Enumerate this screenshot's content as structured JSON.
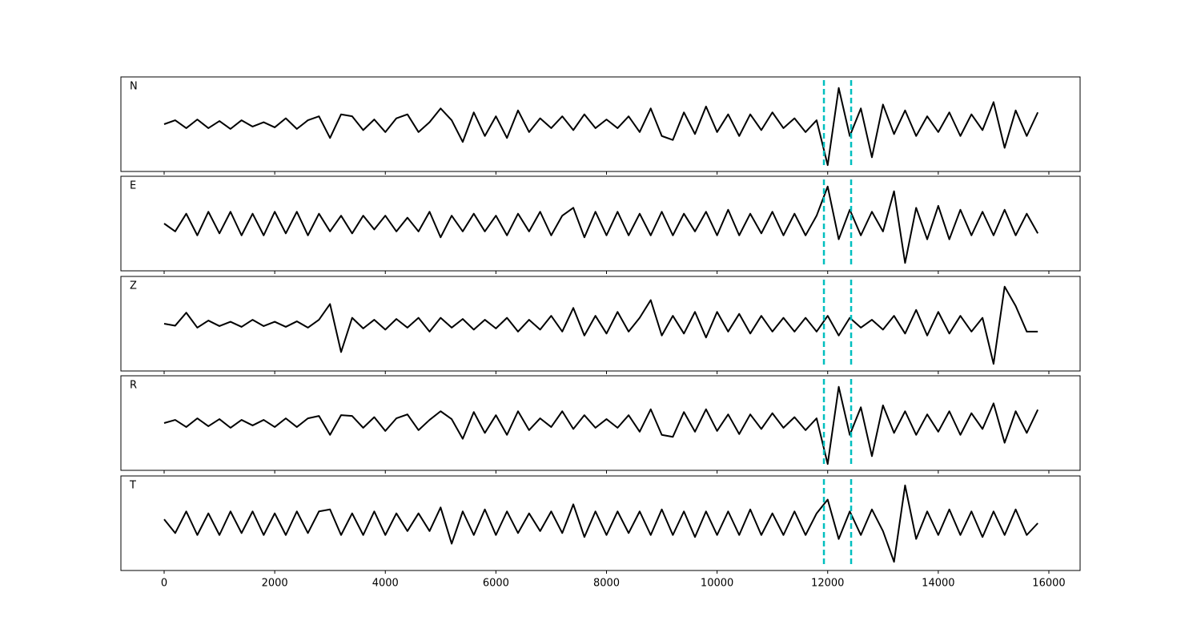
{
  "chart_data": {
    "type": "line",
    "xlim": [
      -782,
      16565
    ],
    "xticks": [
      0,
      2000,
      4000,
      6000,
      8000,
      10000,
      12000,
      14000,
      16000
    ],
    "ylim": [
      -1.2,
      1.2
    ],
    "vlines": [
      11932,
      12424
    ],
    "vline_color": "#00bfbf",
    "x": [
      0,
      200,
      400,
      600,
      800,
      1000,
      1200,
      1400,
      1600,
      1800,
      2000,
      2200,
      2400,
      2600,
      2800,
      3000,
      3200,
      3400,
      3600,
      3800,
      4000,
      4200,
      4400,
      4600,
      4800,
      5000,
      5200,
      5400,
      5600,
      5800,
      6000,
      6200,
      6400,
      6600,
      6800,
      7000,
      7200,
      7400,
      7600,
      7800,
      8000,
      8200,
      8400,
      8600,
      8800,
      9000,
      9200,
      9400,
      9600,
      9800,
      10000,
      10200,
      10400,
      10600,
      10800,
      11000,
      11200,
      11400,
      11600,
      11800,
      12000,
      12200,
      12400,
      12600,
      12800,
      13000,
      13200,
      13400,
      13600,
      13800,
      14000,
      14200,
      14400,
      14600,
      14800,
      15000,
      15200,
      15400,
      15600,
      15800
    ],
    "series": [
      {
        "name": "N",
        "color": "#000000",
        "values": [
          0,
          0.1,
          -0.1,
          0.12,
          -0.1,
          0.08,
          -0.12,
          0.1,
          -0.06,
          0.05,
          -0.08,
          0.15,
          -0.12,
          0.1,
          0.2,
          -0.35,
          0.25,
          0.2,
          -0.15,
          0.12,
          -0.2,
          0.15,
          0.25,
          -0.2,
          0.05,
          0.4,
          0.1,
          -0.45,
          0.3,
          -0.3,
          0.2,
          -0.35,
          0.35,
          -0.2,
          0.15,
          -0.1,
          0.2,
          -0.15,
          0.25,
          -0.1,
          0.12,
          -0.1,
          0.2,
          -0.2,
          0.4,
          -0.3,
          -0.4,
          0.3,
          -0.25,
          0.45,
          -0.2,
          0.25,
          -0.3,
          0.25,
          -0.15,
          0.3,
          -0.1,
          0.15,
          -0.2,
          0.1,
          -1.04,
          0.92,
          -0.3,
          0.4,
          -0.84,
          0.5,
          -0.25,
          0.35,
          -0.3,
          0.2,
          -0.2,
          0.3,
          -0.3,
          0.25,
          -0.15,
          0.56,
          -0.6,
          0.35,
          -0.3,
          0.3
        ]
      },
      {
        "name": "E",
        "color": "#000000",
        "values": [
          0,
          -0.2,
          0.25,
          -0.3,
          0.3,
          -0.25,
          0.3,
          -0.3,
          0.25,
          -0.3,
          0.3,
          -0.25,
          0.3,
          -0.3,
          0.25,
          -0.2,
          0.2,
          -0.25,
          0.2,
          -0.15,
          0.2,
          -0.2,
          0.15,
          -0.2,
          0.3,
          -0.35,
          0.2,
          -0.2,
          0.25,
          -0.2,
          0.2,
          -0.3,
          0.25,
          -0.2,
          0.3,
          -0.3,
          0.2,
          0.4,
          -0.35,
          0.3,
          -0.3,
          0.3,
          -0.3,
          0.25,
          -0.3,
          0.3,
          -0.3,
          0.25,
          -0.2,
          0.3,
          -0.3,
          0.35,
          -0.3,
          0.25,
          -0.25,
          0.3,
          -0.3,
          0.25,
          -0.3,
          0.2,
          0.94,
          -0.4,
          0.35,
          -0.3,
          0.3,
          -0.2,
          0.82,
          -1.0,
          0.4,
          -0.4,
          0.45,
          -0.4,
          0.35,
          -0.3,
          0.3,
          -0.3,
          0.35,
          -0.3,
          0.25,
          -0.25
        ]
      },
      {
        "name": "Z",
        "color": "#000000",
        "values": [
          0,
          -0.05,
          0.28,
          -0.1,
          0.08,
          -0.06,
          0.05,
          -0.08,
          0.1,
          -0.06,
          0.05,
          -0.08,
          0.06,
          -0.1,
          0.1,
          0.5,
          -0.72,
          0.15,
          -0.12,
          0.1,
          -0.15,
          0.12,
          -0.1,
          0.15,
          -0.2,
          0.15,
          -0.1,
          0.12,
          -0.15,
          0.1,
          -0.12,
          0.15,
          -0.2,
          0.1,
          -0.15,
          0.2,
          -0.2,
          0.4,
          -0.3,
          0.2,
          -0.25,
          0.3,
          -0.2,
          0.15,
          0.6,
          -0.3,
          0.2,
          -0.25,
          0.3,
          -0.35,
          0.3,
          -0.2,
          0.25,
          -0.25,
          0.2,
          -0.2,
          0.15,
          -0.2,
          0.15,
          -0.2,
          0.2,
          -0.3,
          0.15,
          -0.1,
          0.1,
          -0.15,
          0.2,
          -0.25,
          0.35,
          -0.3,
          0.3,
          -0.25,
          0.2,
          -0.2,
          0.15,
          -1.02,
          0.94,
          0.45,
          -0.2,
          -0.2
        ]
      },
      {
        "name": "R",
        "color": "#000000",
        "values": [
          0,
          0.08,
          -0.1,
          0.12,
          -0.08,
          0.1,
          -0.12,
          0.08,
          -0.06,
          0.08,
          -0.1,
          0.12,
          -0.1,
          0.12,
          0.18,
          -0.3,
          0.2,
          0.18,
          -0.12,
          0.15,
          -0.2,
          0.12,
          0.22,
          -0.18,
          0.08,
          0.3,
          0.1,
          -0.4,
          0.28,
          -0.25,
          0.2,
          -0.3,
          0.3,
          -0.18,
          0.12,
          -0.1,
          0.3,
          -0.15,
          0.2,
          -0.12,
          0.1,
          -0.12,
          0.2,
          -0.22,
          0.35,
          -0.3,
          -0.35,
          0.28,
          -0.22,
          0.35,
          -0.2,
          0.22,
          -0.28,
          0.22,
          -0.15,
          0.25,
          -0.12,
          0.15,
          -0.18,
          0.12,
          -1.04,
          0.92,
          -0.3,
          0.4,
          -0.84,
          0.45,
          -0.25,
          0.3,
          -0.3,
          0.22,
          -0.22,
          0.3,
          -0.3,
          0.25,
          -0.15,
          0.5,
          -0.5,
          0.3,
          -0.25,
          0.34
        ]
      },
      {
        "name": "T",
        "color": "#000000",
        "values": [
          0.1,
          -0.25,
          0.3,
          -0.3,
          0.25,
          -0.3,
          0.3,
          -0.25,
          0.3,
          -0.3,
          0.25,
          -0.3,
          0.3,
          -0.25,
          0.3,
          0.35,
          -0.3,
          0.25,
          -0.3,
          0.3,
          -0.3,
          0.25,
          -0.2,
          0.25,
          -0.2,
          0.4,
          -0.52,
          0.3,
          -0.3,
          0.35,
          -0.3,
          0.3,
          -0.25,
          0.25,
          -0.2,
          0.3,
          -0.25,
          0.48,
          -0.35,
          0.3,
          -0.3,
          0.3,
          -0.25,
          0.3,
          -0.3,
          0.35,
          -0.3,
          0.3,
          -0.35,
          0.3,
          -0.3,
          0.3,
          -0.3,
          0.35,
          -0.3,
          0.25,
          -0.3,
          0.3,
          -0.3,
          0.25,
          0.6,
          -0.4,
          0.3,
          -0.3,
          0.35,
          -0.2,
          -0.98,
          0.96,
          -0.4,
          0.3,
          -0.3,
          0.35,
          -0.3,
          0.3,
          -0.35,
          0.3,
          -0.3,
          0.35,
          -0.3,
          0.0
        ]
      }
    ]
  }
}
